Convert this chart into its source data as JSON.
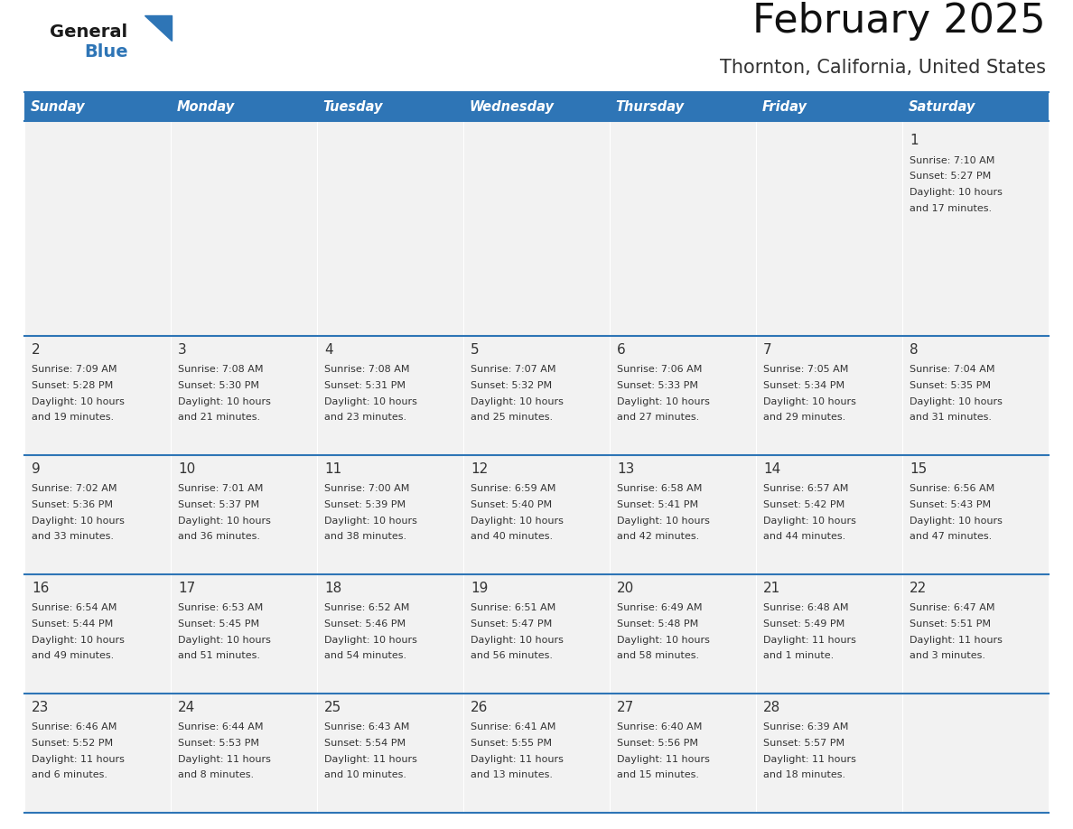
{
  "title": "February 2025",
  "subtitle": "Thornton, California, United States",
  "header_bg": "#2E75B6",
  "header_text_color": "#FFFFFF",
  "cell_bg": "#F2F2F2",
  "separator_color": "#2E75B6",
  "grid_line_color": "#CCCCCC",
  "text_color": "#333333",
  "days_of_week": [
    "Sunday",
    "Monday",
    "Tuesday",
    "Wednesday",
    "Thursday",
    "Friday",
    "Saturday"
  ],
  "logo_general_color": "#1a1a1a",
  "logo_blue_color": "#2E75B6",
  "logo_triangle_color": "#2E75B6",
  "calendar_data": [
    [
      null,
      null,
      null,
      null,
      null,
      null,
      {
        "day": "1",
        "sunrise": "7:10 AM",
        "sunset": "5:27 PM",
        "daylight": "10 hours",
        "daylight2": "and 17 minutes."
      }
    ],
    [
      {
        "day": "2",
        "sunrise": "7:09 AM",
        "sunset": "5:28 PM",
        "daylight": "10 hours",
        "daylight2": "and 19 minutes."
      },
      {
        "day": "3",
        "sunrise": "7:08 AM",
        "sunset": "5:30 PM",
        "daylight": "10 hours",
        "daylight2": "and 21 minutes."
      },
      {
        "day": "4",
        "sunrise": "7:08 AM",
        "sunset": "5:31 PM",
        "daylight": "10 hours",
        "daylight2": "and 23 minutes."
      },
      {
        "day": "5",
        "sunrise": "7:07 AM",
        "sunset": "5:32 PM",
        "daylight": "10 hours",
        "daylight2": "and 25 minutes."
      },
      {
        "day": "6",
        "sunrise": "7:06 AM",
        "sunset": "5:33 PM",
        "daylight": "10 hours",
        "daylight2": "and 27 minutes."
      },
      {
        "day": "7",
        "sunrise": "7:05 AM",
        "sunset": "5:34 PM",
        "daylight": "10 hours",
        "daylight2": "and 29 minutes."
      },
      {
        "day": "8",
        "sunrise": "7:04 AM",
        "sunset": "5:35 PM",
        "daylight": "10 hours",
        "daylight2": "and 31 minutes."
      }
    ],
    [
      {
        "day": "9",
        "sunrise": "7:02 AM",
        "sunset": "5:36 PM",
        "daylight": "10 hours",
        "daylight2": "and 33 minutes."
      },
      {
        "day": "10",
        "sunrise": "7:01 AM",
        "sunset": "5:37 PM",
        "daylight": "10 hours",
        "daylight2": "and 36 minutes."
      },
      {
        "day": "11",
        "sunrise": "7:00 AM",
        "sunset": "5:39 PM",
        "daylight": "10 hours",
        "daylight2": "and 38 minutes."
      },
      {
        "day": "12",
        "sunrise": "6:59 AM",
        "sunset": "5:40 PM",
        "daylight": "10 hours",
        "daylight2": "and 40 minutes."
      },
      {
        "day": "13",
        "sunrise": "6:58 AM",
        "sunset": "5:41 PM",
        "daylight": "10 hours",
        "daylight2": "and 42 minutes."
      },
      {
        "day": "14",
        "sunrise": "6:57 AM",
        "sunset": "5:42 PM",
        "daylight": "10 hours",
        "daylight2": "and 44 minutes."
      },
      {
        "day": "15",
        "sunrise": "6:56 AM",
        "sunset": "5:43 PM",
        "daylight": "10 hours",
        "daylight2": "and 47 minutes."
      }
    ],
    [
      {
        "day": "16",
        "sunrise": "6:54 AM",
        "sunset": "5:44 PM",
        "daylight": "10 hours",
        "daylight2": "and 49 minutes."
      },
      {
        "day": "17",
        "sunrise": "6:53 AM",
        "sunset": "5:45 PM",
        "daylight": "10 hours",
        "daylight2": "and 51 minutes."
      },
      {
        "day": "18",
        "sunrise": "6:52 AM",
        "sunset": "5:46 PM",
        "daylight": "10 hours",
        "daylight2": "and 54 minutes."
      },
      {
        "day": "19",
        "sunrise": "6:51 AM",
        "sunset": "5:47 PM",
        "daylight": "10 hours",
        "daylight2": "and 56 minutes."
      },
      {
        "day": "20",
        "sunrise": "6:49 AM",
        "sunset": "5:48 PM",
        "daylight": "10 hours",
        "daylight2": "and 58 minutes."
      },
      {
        "day": "21",
        "sunrise": "6:48 AM",
        "sunset": "5:49 PM",
        "daylight": "11 hours",
        "daylight2": "and 1 minute."
      },
      {
        "day": "22",
        "sunrise": "6:47 AM",
        "sunset": "5:51 PM",
        "daylight": "11 hours",
        "daylight2": "and 3 minutes."
      }
    ],
    [
      {
        "day": "23",
        "sunrise": "6:46 AM",
        "sunset": "5:52 PM",
        "daylight": "11 hours",
        "daylight2": "and 6 minutes."
      },
      {
        "day": "24",
        "sunrise": "6:44 AM",
        "sunset": "5:53 PM",
        "daylight": "11 hours",
        "daylight2": "and 8 minutes."
      },
      {
        "day": "25",
        "sunrise": "6:43 AM",
        "sunset": "5:54 PM",
        "daylight": "11 hours",
        "daylight2": "and 10 minutes."
      },
      {
        "day": "26",
        "sunrise": "6:41 AM",
        "sunset": "5:55 PM",
        "daylight": "11 hours",
        "daylight2": "and 13 minutes."
      },
      {
        "day": "27",
        "sunrise": "6:40 AM",
        "sunset": "5:56 PM",
        "daylight": "11 hours",
        "daylight2": "and 15 minutes."
      },
      {
        "day": "28",
        "sunrise": "6:39 AM",
        "sunset": "5:57 PM",
        "daylight": "11 hours",
        "daylight2": "and 18 minutes."
      },
      null
    ]
  ],
  "title_fontsize": 32,
  "subtitle_fontsize": 15,
  "day_header_fontsize": 10.5,
  "day_num_fontsize": 11,
  "cell_text_fontsize": 8
}
